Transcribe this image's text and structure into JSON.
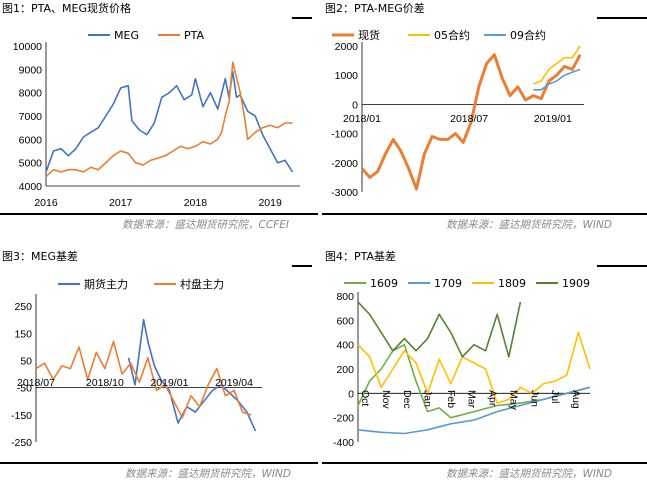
{
  "panels": [
    {
      "title": "图1：PTA、MEG现货价格",
      "source": "数据来源：盛达期货研究院，CCFEI"
    },
    {
      "title": "图2：PTA-MEG价差",
      "source": "数据来源：盛达期货研究院，WIND"
    },
    {
      "title": "图3：MEG基差",
      "source": "数据来源：盛达期货研究院，WIND"
    },
    {
      "title": "图4：PTA基差",
      "source": "数据来源：盛达期货研究院，WIND"
    }
  ],
  "chart_data": [
    {
      "type": "line",
      "title": "",
      "x_ticks": [
        "2016",
        "2017",
        "2018",
        "2019"
      ],
      "y_ticks": [
        "4000",
        "5000",
        "6000",
        "7000",
        "8000",
        "9000",
        "10000"
      ],
      "ylim": [
        4000,
        10000
      ],
      "legend_position": "top",
      "series": [
        {
          "name": "MEG",
          "color": "#4472C4",
          "x": [
            2016.0,
            2016.1,
            2016.2,
            2016.3,
            2016.4,
            2016.5,
            2016.6,
            2016.7,
            2016.8,
            2016.9,
            2017.0,
            2017.1,
            2017.15,
            2017.25,
            2017.35,
            2017.45,
            2017.55,
            2017.65,
            2017.75,
            2017.85,
            2017.95,
            2018.0,
            2018.1,
            2018.2,
            2018.3,
            2018.4,
            2018.45,
            2018.5,
            2018.55,
            2018.6,
            2018.7,
            2018.8,
            2018.9,
            2019.0,
            2019.1,
            2019.2,
            2019.3
          ],
          "values": [
            4600,
            5500,
            5600,
            5300,
            5600,
            6100,
            6300,
            6500,
            7000,
            7500,
            8200,
            8300,
            6800,
            6400,
            6200,
            6700,
            7800,
            8000,
            8300,
            7700,
            7900,
            8600,
            7400,
            8000,
            7300,
            8600,
            7800,
            8900,
            7800,
            7900,
            7200,
            7000,
            6200,
            5600,
            5000,
            5100,
            4600
          ]
        },
        {
          "name": "PTA",
          "color": "#ED7D31",
          "x": [
            2016.0,
            2016.1,
            2016.2,
            2016.3,
            2016.4,
            2016.5,
            2016.6,
            2016.7,
            2016.8,
            2016.9,
            2017.0,
            2017.1,
            2017.2,
            2017.3,
            2017.4,
            2017.5,
            2017.6,
            2017.7,
            2017.8,
            2017.9,
            2018.0,
            2018.1,
            2018.2,
            2018.3,
            2018.35,
            2018.4,
            2018.45,
            2018.5,
            2018.6,
            2018.65,
            2018.7,
            2018.8,
            2018.9,
            2019.0,
            2019.1,
            2019.2,
            2019.3
          ],
          "values": [
            4400,
            4700,
            4600,
            4700,
            4700,
            4600,
            4800,
            4700,
            5000,
            5300,
            5500,
            5400,
            5000,
            4900,
            5100,
            5200,
            5300,
            5500,
            5700,
            5600,
            5700,
            5900,
            5800,
            6000,
            6300,
            7000,
            7600,
            9300,
            8000,
            7100,
            6000,
            6300,
            6500,
            6600,
            6500,
            6700,
            6700
          ]
        }
      ]
    },
    {
      "type": "line",
      "title": "",
      "x_ticks": [
        "2018/01",
        "2018/07",
        "2019/01"
      ],
      "y_ticks": [
        "2000",
        "1000",
        "0",
        "-1000",
        "-2000",
        "-3000"
      ],
      "ylim": [
        -3000,
        2000
      ],
      "legend_position": "top",
      "series": [
        {
          "name": "现货",
          "color": "#ED7D31",
          "x": [
            0,
            0.04,
            0.08,
            0.12,
            0.16,
            0.2,
            0.24,
            0.28,
            0.32,
            0.36,
            0.4,
            0.44,
            0.48,
            0.52,
            0.56,
            0.6,
            0.64,
            0.68,
            0.72,
            0.76,
            0.8,
            0.84,
            0.88,
            0.92,
            0.96,
            1.0,
            1.04,
            1.08,
            1.12
          ],
          "values": [
            -2200,
            -2500,
            -2300,
            -1700,
            -1200,
            -1600,
            -2200,
            -2900,
            -1700,
            -1100,
            -1200,
            -1200,
            -1000,
            -1300,
            -600,
            600,
            1400,
            1700,
            900,
            300,
            600,
            150,
            300,
            200,
            800,
            1000,
            1300,
            1200,
            1700
          ]
        },
        {
          "name": "05合约",
          "color": "#FFC000",
          "x": [
            0.88,
            0.92,
            0.96,
            1.0,
            1.04,
            1.08,
            1.12
          ],
          "values": [
            700,
            800,
            1200,
            1400,
            1600,
            1600,
            2000
          ]
        },
        {
          "name": "09合约",
          "color": "#5B9BD5",
          "x": [
            0.88,
            0.92,
            0.96,
            1.0,
            1.04,
            1.08,
            1.12
          ],
          "values": [
            500,
            500,
            700,
            800,
            1000,
            1100,
            1200
          ]
        }
      ]
    },
    {
      "type": "line",
      "title": "",
      "x_ticks": [
        "2018/07",
        "2018/10",
        "2019/01",
        "2019/04"
      ],
      "y_ticks": [
        "250",
        "150",
        "50",
        "-50",
        "-150",
        "-250"
      ],
      "ylim": [
        -250,
        280
      ],
      "legend_position": "top",
      "series": [
        {
          "name": "期货主力",
          "color": "#4472C4",
          "x": [
            0.43,
            0.46,
            0.5,
            0.52,
            0.55,
            0.58,
            0.62,
            0.66,
            0.7,
            0.74,
            0.78,
            0.82,
            0.86,
            0.9,
            0.94,
            0.98,
            1.02
          ],
          "values": [
            60,
            -40,
            200,
            120,
            30,
            -20,
            -60,
            -180,
            -120,
            -140,
            -100,
            -60,
            -40,
            -70,
            -100,
            -140,
            -210
          ]
        },
        {
          "name": "村盘主力",
          "color": "#ED7D31",
          "x": [
            0.0,
            0.04,
            0.08,
            0.12,
            0.16,
            0.2,
            0.24,
            0.28,
            0.32,
            0.36,
            0.4,
            0.44,
            0.48,
            0.52,
            0.56,
            0.6,
            0.64,
            0.68,
            0.72,
            0.76,
            0.8,
            0.84,
            0.88,
            0.92,
            0.96,
            1.0
          ],
          "values": [
            20,
            40,
            -20,
            30,
            20,
            100,
            -20,
            80,
            20,
            120,
            0,
            40,
            -30,
            60,
            -60,
            -40,
            -100,
            -160,
            -80,
            -120,
            -40,
            20,
            -80,
            -60,
            -140,
            -150
          ]
        }
      ]
    },
    {
      "type": "line",
      "title": "",
      "x_ticks": [
        "Oct",
        "Nov",
        "Dec",
        "Jan",
        "Feb",
        "Mar",
        "Apr",
        "May",
        "Jun",
        "Jul",
        "Aug"
      ],
      "y_ticks": [
        "800",
        "600",
        "400",
        "200",
        "0",
        "-200",
        "-400"
      ],
      "ylim": [
        -400,
        800
      ],
      "legend_position": "top",
      "series": [
        {
          "name": "1609",
          "color": "#70AD47",
          "x": [
            0.0,
            0.05,
            0.1,
            0.15,
            0.2,
            0.25,
            0.3,
            0.35,
            0.4,
            0.5,
            0.6,
            0.7,
            0.8,
            0.9,
            1.0
          ],
          "values": [
            -100,
            100,
            200,
            350,
            400,
            100,
            -150,
            -120,
            -200,
            -150,
            -100,
            -80,
            -50,
            0,
            50
          ]
        },
        {
          "name": "1709",
          "color": "#5B9BD5",
          "x": [
            0.0,
            0.1,
            0.2,
            0.3,
            0.4,
            0.5,
            0.6,
            0.7,
            0.8,
            0.9,
            1.0
          ],
          "values": [
            -300,
            -320,
            -330,
            -300,
            -250,
            -220,
            -150,
            -100,
            -50,
            0,
            50
          ]
        },
        {
          "name": "1809",
          "color": "#FFC000",
          "x": [
            0.0,
            0.05,
            0.1,
            0.15,
            0.2,
            0.25,
            0.3,
            0.35,
            0.4,
            0.45,
            0.5,
            0.55,
            0.6,
            0.65,
            0.7,
            0.75,
            0.8,
            0.85,
            0.9,
            0.95,
            1.0
          ],
          "values": [
            400,
            300,
            50,
            200,
            350,
            250,
            0,
            280,
            80,
            300,
            250,
            200,
            -80,
            -50,
            50,
            0,
            80,
            100,
            150,
            500,
            200
          ]
        },
        {
          "name": "1909",
          "color": "#548235",
          "x": [
            0.0,
            0.05,
            0.1,
            0.15,
            0.2,
            0.25,
            0.3,
            0.35,
            0.4,
            0.45,
            0.5,
            0.55,
            0.6,
            0.65,
            0.7
          ],
          "values": [
            750,
            650,
            500,
            350,
            450,
            350,
            450,
            650,
            500,
            300,
            400,
            350,
            650,
            300,
            750
          ]
        }
      ]
    }
  ]
}
